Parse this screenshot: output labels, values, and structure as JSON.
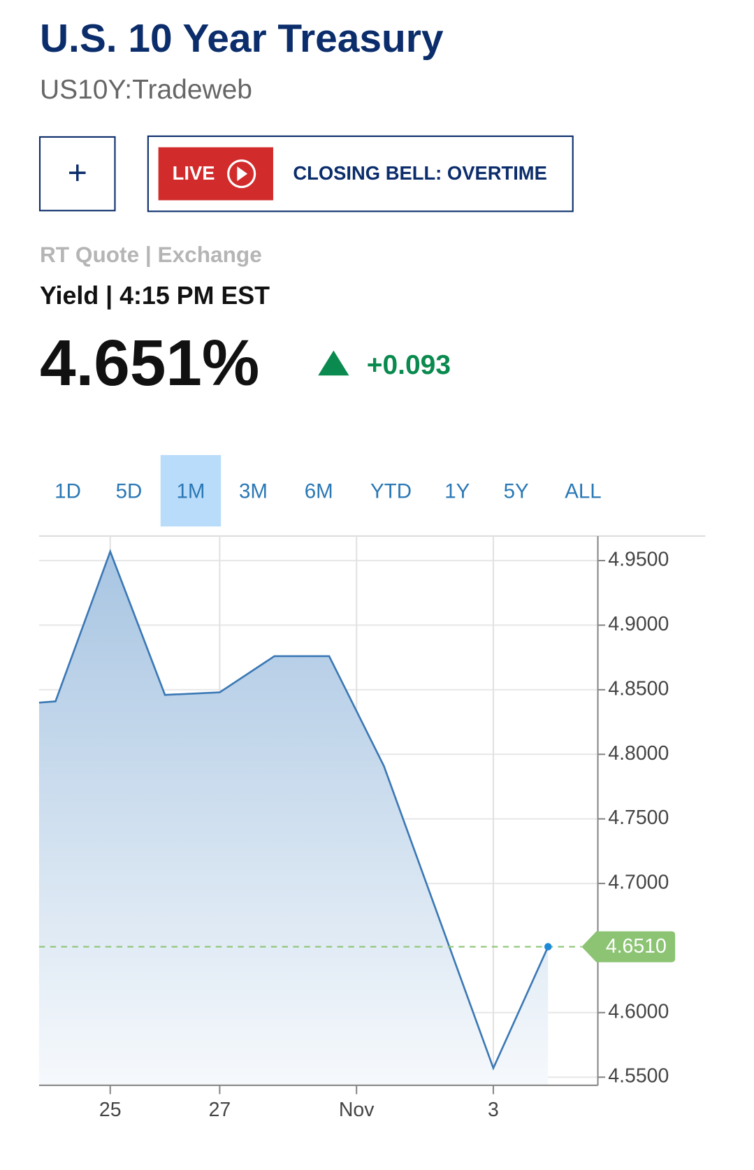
{
  "header": {
    "title": "U.S. 10 Year Treasury",
    "symbol": "US10Y:Tradeweb"
  },
  "buttons": {
    "add": "+",
    "live": "LIVE",
    "program": "CLOSING BELL: OVERTIME"
  },
  "quote": {
    "source": "RT Quote | Exchange",
    "time": "Yield | 4:15 PM EST",
    "price": "4.651%",
    "change": "+0.093"
  },
  "tabs": {
    "items": [
      "1D",
      "5D",
      "1M",
      "3M",
      "6M",
      "YTD",
      "1Y",
      "5Y",
      "ALL"
    ],
    "active": "1M"
  },
  "chart_data": {
    "type": "area",
    "x": [
      -0.3,
      0,
      1,
      2,
      3,
      4,
      5,
      6,
      8,
      9
    ],
    "series": [
      {
        "color": "#3b78b5",
        "values": [
          4.84,
          4.841,
          4.957,
          4.846,
          4.848,
          4.876,
          4.876,
          4.791,
          4.557,
          4.651
        ]
      }
    ],
    "fill_gradient": [
      "#a8c5e2",
      "#f6f9fc"
    ],
    "xlim": [
      -0.3,
      9.91
    ],
    "xticks": [
      {
        "value": 1,
        "label": "25"
      },
      {
        "value": 3,
        "label": "27"
      },
      {
        "value": 5.5,
        "label": "Nov"
      },
      {
        "value": 8,
        "label": "3"
      }
    ],
    "ylim": [
      4.5437,
      4.969
    ],
    "yticks": [
      {
        "value": 4.55,
        "label": "4.5500"
      },
      {
        "value": 4.6,
        "label": "4.6000"
      },
      {
        "value": 4.7,
        "label": "4.7000"
      },
      {
        "value": 4.75,
        "label": "4.7500"
      },
      {
        "value": 4.8,
        "label": "4.8000"
      },
      {
        "value": 4.85,
        "label": "4.8500"
      },
      {
        "value": 4.9,
        "label": "4.9000"
      },
      {
        "value": 4.95,
        "label": "4.9500"
      }
    ],
    "grid": true,
    "reference_line": {
      "value": 4.651,
      "label": "4.6510",
      "color": "#8cc474"
    }
  }
}
